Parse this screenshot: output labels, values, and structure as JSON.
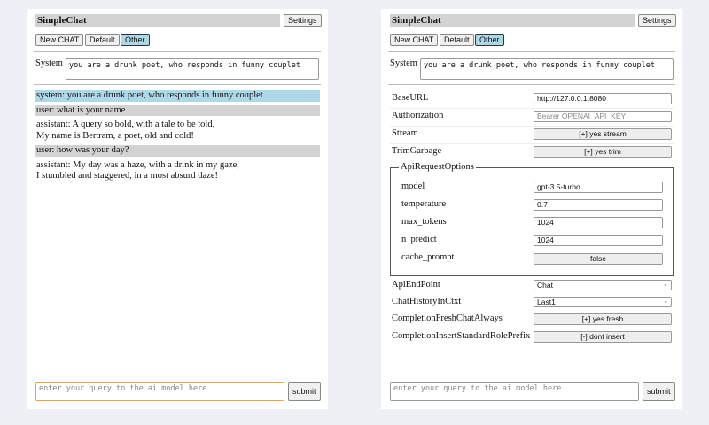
{
  "app": {
    "title": "SimpleChat",
    "settings_label": "Settings"
  },
  "toolbar": {
    "new_chat": "New CHAT",
    "default": "Default",
    "other": "Other"
  },
  "system": {
    "label": "System",
    "value": "you are a drunk poet, who responds in funny couplet"
  },
  "messages": [
    {
      "role": "system",
      "lines": [
        "system: you are a drunk poet, who responds in funny couplet"
      ]
    },
    {
      "role": "user",
      "lines": [
        "user: what is your name"
      ]
    },
    {
      "role": "assistant",
      "lines": [
        "assistant: A query so bold, with a tale to be told,",
        "My name is Bertram, a poet, old and cold!"
      ]
    },
    {
      "role": "user",
      "lines": [
        "user: how was your day?"
      ]
    },
    {
      "role": "assistant",
      "lines": [
        "assistant: My day was a haze, with a drink in my gaze,",
        "I stumbled and staggered, in a most absurd daze!"
      ]
    }
  ],
  "input": {
    "placeholder": "enter your query to the ai model here",
    "submit": "submit"
  },
  "settings": {
    "base_url": {
      "label": "BaseURL",
      "value": "http://127.0.0.1:8080"
    },
    "authorization": {
      "label": "Authorization",
      "placeholder": "Bearer OPENAI_API_KEY"
    },
    "stream": {
      "label": "Stream",
      "value": "[+] yes stream"
    },
    "trim_garbage": {
      "label": "TrimGarbage",
      "value": "[+] yes trim"
    },
    "api_request_options": {
      "legend": "ApiRequestOptions",
      "model": {
        "label": "model",
        "value": "gpt-3.5-turbo"
      },
      "temperature": {
        "label": "temperature",
        "value": "0.7"
      },
      "max_tokens": {
        "label": "max_tokens",
        "value": "1024"
      },
      "n_predict": {
        "label": "n_predict",
        "value": "1024"
      },
      "cache_prompt": {
        "label": "cache_prompt",
        "value": "false"
      }
    },
    "api_endpoint": {
      "label": "ApiEndPoint",
      "value": "Chat"
    },
    "chat_history": {
      "label": "ChatHistoryInCtxt",
      "value": "Last1"
    },
    "completion_fresh": {
      "label": "CompletionFreshChatAlways",
      "value": "[+] yes fresh"
    },
    "completion_prefix": {
      "label": "CompletionInsertStandardRolePrefix",
      "value": "[-] dont insert"
    }
  }
}
